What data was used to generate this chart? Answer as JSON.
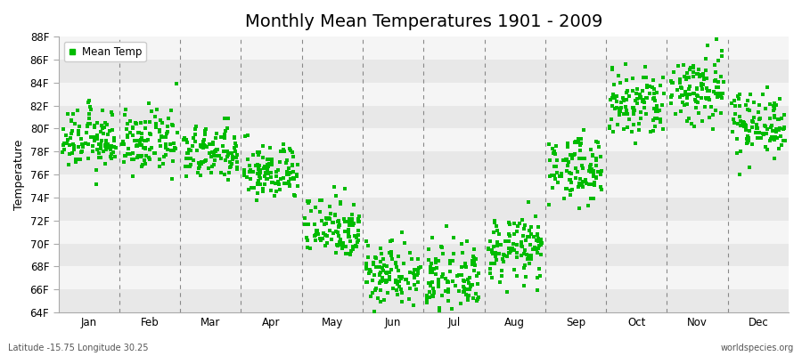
{
  "title": "Monthly Mean Temperatures 1901 - 2009",
  "ylabel": "Temperature",
  "ylim": [
    64,
    88
  ],
  "yticks": [
    64,
    66,
    68,
    70,
    72,
    74,
    76,
    78,
    80,
    82,
    84,
    86,
    88
  ],
  "ytick_labels": [
    "64F",
    "66F",
    "68F",
    "70F",
    "72F",
    "74F",
    "76F",
    "78F",
    "80F",
    "82F",
    "84F",
    "86F",
    "88F"
  ],
  "months": [
    "Jan",
    "Feb",
    "Mar",
    "Apr",
    "May",
    "Jun",
    "Jul",
    "Aug",
    "Sep",
    "Oct",
    "Nov",
    "Dec"
  ],
  "month_centers": [
    0.5,
    1.5,
    2.5,
    3.5,
    4.5,
    5.5,
    6.5,
    7.5,
    8.5,
    9.5,
    10.5,
    11.5
  ],
  "mean_temps_f": [
    79.0,
    78.8,
    77.8,
    76.2,
    71.5,
    67.5,
    66.8,
    69.5,
    76.5,
    82.0,
    83.5,
    80.5
  ],
  "std_temps_f": [
    1.3,
    1.3,
    1.2,
    1.2,
    1.4,
    1.4,
    1.4,
    1.4,
    1.4,
    1.6,
    1.7,
    1.4
  ],
  "n_years": 109,
  "dot_color": "#00bb00",
  "dot_size": 5,
  "background_color": "#ffffff",
  "band_color_dark": "#e8e8e8",
  "band_color_light": "#f5f5f5",
  "vline_color": "#888888",
  "title_fontsize": 14,
  "label_fontsize": 9,
  "tick_fontsize": 8.5,
  "footer_left": "Latitude -15.75 Longitude 30.25",
  "footer_right": "worldspecies.org",
  "legend_label": "Mean Temp"
}
